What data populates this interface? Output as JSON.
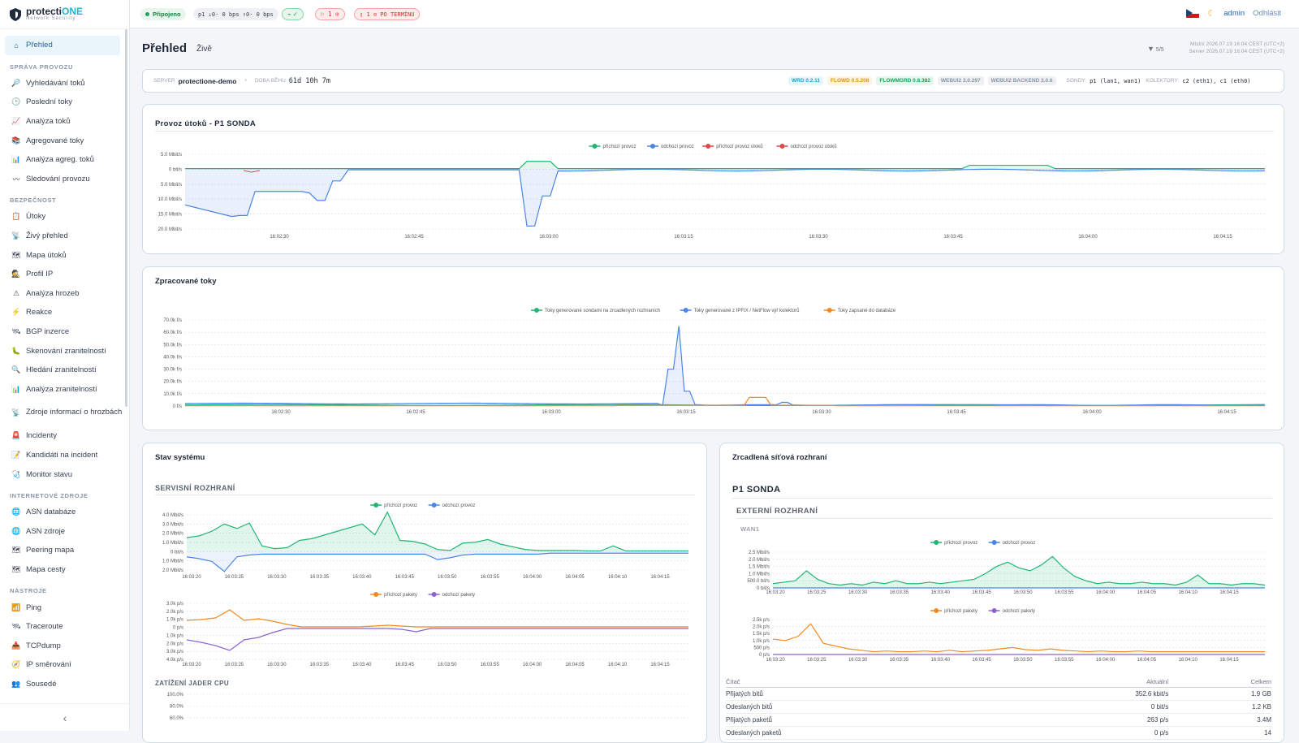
{
  "brand": {
    "name_a": "protecti",
    "name_b": "ONE",
    "subtitle": "Network Security"
  },
  "nav": {
    "overview": "Přehled",
    "sec_traffic": "SPRÁVA PROVOZU",
    "traffic": [
      "Vyhledávání toků",
      "Poslední toky",
      "Analýza toků",
      "Agregované toky",
      "Analýza agreg. toků",
      "Sledování provozu"
    ],
    "sec_security": "BEZPEČNOST",
    "security": [
      "Útoky",
      "Živý přehled",
      "Mapa útoků",
      "Profil IP",
      "Analýza hrozeb",
      "Reakce",
      "BGP inzerce",
      "Skenování zranitelností",
      "Hledání zranitelností",
      "Analýza zranitelností",
      "Zdroje informací o hrozbách",
      "Incidenty",
      "Kandidáti na incident",
      "Monitor stavu"
    ],
    "sec_internet": "INTERNETOVÉ ZDROJE",
    "internet": [
      "ASN databáze",
      "ASN zdroje",
      "Peering mapa",
      "Mapa cesty"
    ],
    "sec_tools": "NÁSTROJE",
    "tools": [
      "Ping",
      "Traceroute",
      "TCPdump",
      "IP směrování",
      "Sousedé"
    ],
    "collapse": "‹"
  },
  "topbar": {
    "connected": "Připojeno",
    "traffic": "p1 ↓0· 0 bps ↑0· 0 bps",
    "status_ok": "✓",
    "flags": "1",
    "incidents": "1 ⊙ PO TERMÍNU",
    "user": "admin",
    "logout": "Odhlásit"
  },
  "page": {
    "title": "Přehled",
    "live": "Živě",
    "filter": "5/5",
    "local_time": "Místní 2026.07.19 16:04 CEST (UTC+2)",
    "server_time": "Server 2026.07.19 16:04 CEST (UTC+2)"
  },
  "server": {
    "server_label": "SERVER",
    "server_name": "protectione-demo",
    "uptime_label": "DOBA BĚHU",
    "uptime": "61d 10h 7m",
    "tags": [
      "WRD 0.2.11",
      "FLOWD 0.5.208",
      "FLOWMGRD 0.8.382",
      "WEBUI2 3.0.297",
      "WEBUI2 BACKEND 3.0.6"
    ],
    "probes_label": "SONDY:",
    "probes": "p1 (lan1, wan1)",
    "collectors_label": "KOLEKTORY:",
    "collectors": "c2 (eth1), c1 (eth0)"
  },
  "cards": {
    "attack": "Provoz útoků - P1 SONDA",
    "flows": "Zpracované toky",
    "system": "Stav systému",
    "service_if": "SERVISNÍ ROZHRANÍ",
    "cpu": "ZATÍŽENÍ JADER CPU",
    "mirror": "Zrcadlená síťová rozhraní",
    "probe": "P1 SONDA",
    "external": "EXTERNÍ ROZHRANÍ",
    "wan": "WAN1"
  },
  "colors": {
    "green": "#22b573",
    "blue": "#4a86e8",
    "red": "#e04848",
    "orange": "#f08a24",
    "purple": "#8a63d2"
  },
  "chart_data": [
    {
      "type": "line",
      "title": "Provoz útoků - P1 SONDA",
      "legend": [
        "příchozí provoz",
        "odchozí provoz",
        "příchozí provoz útoků",
        "odchozí provoz útoků"
      ],
      "yticks": [
        "5.0 Mbit/s",
        "0 bit/s",
        "5.0 Mbit/s",
        "10.0 Mbit/s",
        "15.0 Mbit/s",
        "20.0 Mbit/s"
      ],
      "xticks": [
        "16:02:30",
        "16:02:45",
        "16:03:00",
        "16:03:15",
        "16:03:30",
        "16:03:45",
        "16:04:00",
        "16:04:15"
      ]
    },
    {
      "type": "line",
      "title": "Zpracované toky",
      "legend": [
        "Toky generované sondami na zrcadlených rozhraních",
        "Toky generované z IPFIX / NetFlow výř kolektorů",
        "Toky zapsané do databáze"
      ],
      "yticks": [
        "70.0k f/s",
        "60.0k f/s",
        "50.0k f/s",
        "40.0k f/s",
        "30.0k f/s",
        "20.0k f/s",
        "10.0k f/s",
        "0 f/s"
      ],
      "xticks": [
        "16:02:30",
        "16:02:45",
        "16:03:00",
        "16:03:15",
        "16:03:30",
        "16:03:45",
        "16:04:00",
        "16:04:15"
      ]
    },
    {
      "type": "line",
      "legend": [
        "příchozí provoz",
        "odchozí provoz"
      ],
      "yticks": [
        "4.0 Mbit/s",
        "3.0 Mbit/s",
        "2.0 Mbit/s",
        "1.0 Mbit/s",
        "0 bit/s",
        "1.0 Mbit/s",
        "2.0 Mbit/s"
      ],
      "xticks": [
        "16:03:20",
        "16:03:25",
        "16:03:30",
        "16:03:35",
        "16:03:40",
        "16:03:45",
        "16:03:50",
        "16:03:55",
        "16:04:00",
        "16:04:05",
        "16:04:10",
        "16:04:15"
      ]
    },
    {
      "type": "line",
      "legend": [
        "příchozí pakety",
        "odchozí pakety"
      ],
      "yticks": [
        "3.0k p/s",
        "2.0k p/s",
        "1.0k p/s",
        "0 p/s",
        "1.0k p/s",
        "2.0k p/s",
        "3.0k p/s",
        "4.0k p/s"
      ],
      "xticks": [
        "16:03:20",
        "16:03:25",
        "16:03:30",
        "16:03:35",
        "16:03:40",
        "16:03:45",
        "16:03:50",
        "16:03:55",
        "16:04:00",
        "16:04:05",
        "16:04:10",
        "16:04:15"
      ]
    },
    {
      "type": "line",
      "title": "ZATÍŽENÍ JADER CPU",
      "yticks": [
        "100.0%",
        "80.0%",
        "60.0%"
      ]
    },
    {
      "type": "line",
      "legend": [
        "příchozí provoz",
        "odchozí provoz"
      ],
      "yticks": [
        "2.5 Mbit/s",
        "2.0 Mbit/s",
        "1.5 Mbit/s",
        "1.0 Mbit/s",
        "500.0 bit/s",
        "0 bit/s"
      ],
      "xticks": [
        "16:03:20",
        "16:03:25",
        "16:03:30",
        "16:03:35",
        "16:03:40",
        "16:03:45",
        "16:03:50",
        "16:03:55",
        "16:04:00",
        "16:04:05",
        "16:04:10",
        "16:04:15"
      ]
    },
    {
      "type": "line",
      "legend": [
        "příchozí pakety",
        "odchozí pakety"
      ],
      "yticks": [
        "2.5k p/s",
        "2.0k p/s",
        "1.5k p/s",
        "1.0k p/s",
        "500 p/s",
        "0 p/s"
      ],
      "xticks": [
        "16:03:20",
        "16:03:25",
        "16:03:30",
        "16:03:35",
        "16:03:40",
        "16:03:45",
        "16:03:50",
        "16:03:55",
        "16:04:00",
        "16:04:05",
        "16:04:10",
        "16:04:15"
      ]
    }
  ],
  "stats": {
    "headers": [
      "Čítač",
      "Aktuální",
      "Celkem"
    ],
    "rows": [
      [
        "Přijatých bitů",
        "352.6 kbit/s",
        "1.9 GB"
      ],
      [
        "Odeslaných bitů",
        "0 bit/s",
        "1.2 KB"
      ],
      [
        "Přijatých paketů",
        "263 p/s",
        "3.4M"
      ],
      [
        "Odeslaných paketů",
        "0 p/s",
        "14"
      ]
    ]
  }
}
